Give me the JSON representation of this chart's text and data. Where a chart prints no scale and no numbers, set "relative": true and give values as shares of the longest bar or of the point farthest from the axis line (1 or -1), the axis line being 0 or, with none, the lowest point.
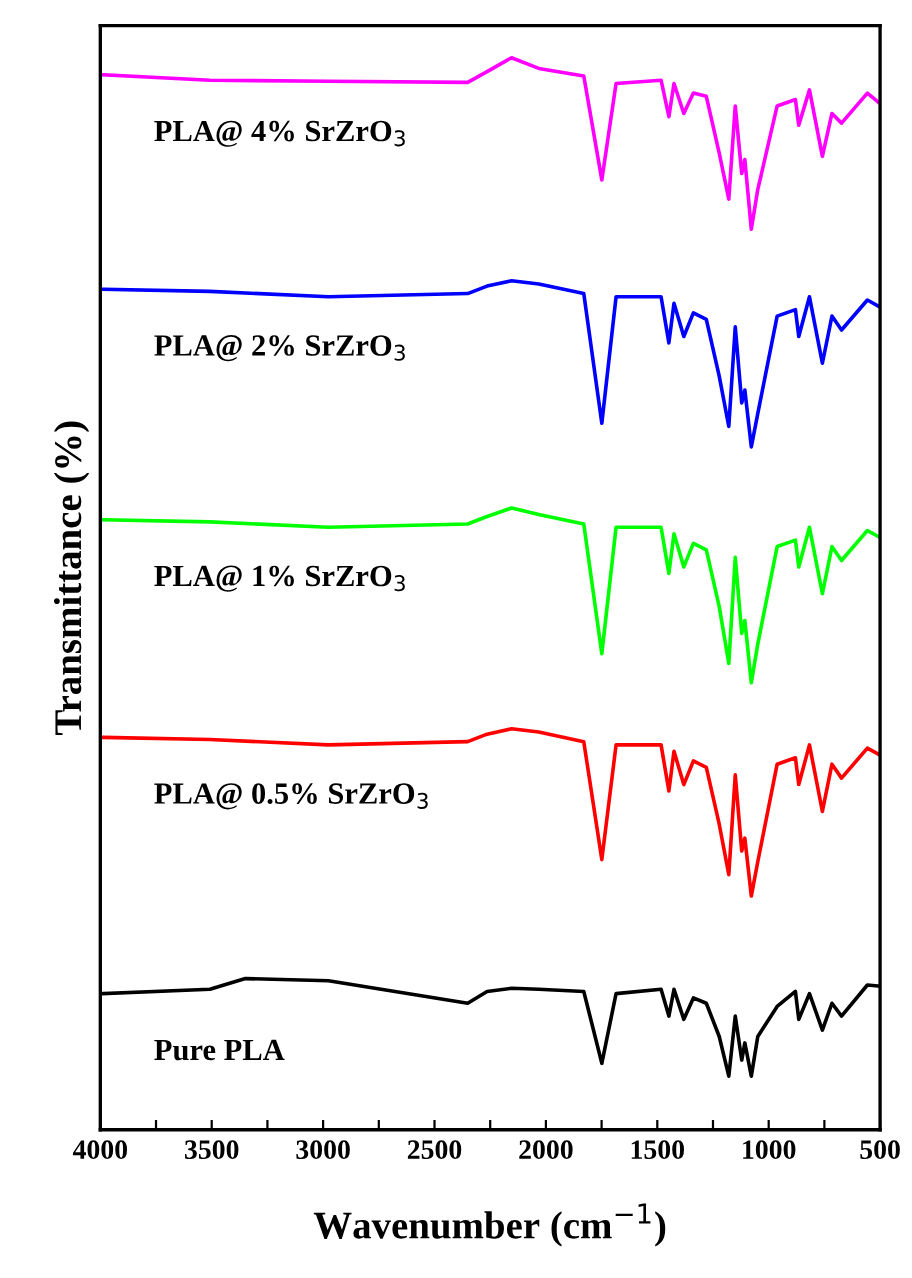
{
  "chart_data": {
    "type": "line",
    "xlabel": "Wavenumber (cm$^{−1}$)",
    "ylabel": "Transmittance (%)",
    "relative": true,
    "tick_labels": "x",
    "grid": false,
    "marker": "none",
    "line_style": "solid",
    "xlim": [
      4000,
      500
    ],
    "xticks": [
      4000,
      {
        "value": 3750,
        "label": null
      },
      3500,
      {
        "value": 3250,
        "label": null
      },
      3000,
      {
        "value": 2750,
        "label": null
      },
      2500,
      {
        "value": 2250,
        "label": null
      },
      2000,
      {
        "value": 1750,
        "label": null
      },
      1500,
      {
        "value": 1250,
        "label": null
      },
      1000,
      {
        "value": 750,
        "label": null
      },
      500
    ],
    "x": [
      3985,
      3508,
      2976,
      2351,
      2264,
      2154,
      2032,
      1830,
      1749,
      1685,
      1483,
      1448,
      1425,
      1381,
      1338,
      1280,
      1222,
      1179,
      1150,
      1121,
      1107,
      1078,
      1049,
      962,
      880,
      865,
      817,
      759,
      716,
      673,
      557,
      505
    ],
    "series": [
      {
        "name": "PLA@ 4% SrZrO$_{3}$",
        "color": "#ff00ff",
        "values": [
          0.984,
          0.979,
          0.978,
          0.977,
          0.987,
          1.0,
          0.99,
          0.983,
          0.886,
          0.976,
          0.979,
          0.945,
          0.976,
          0.948,
          0.967,
          0.964,
          0.911,
          0.868,
          0.955,
          0.892,
          0.905,
          0.84,
          0.877,
          0.955,
          0.961,
          0.937,
          0.97,
          0.908,
          0.948,
          0.939,
          0.967,
          0.958
        ]
      },
      {
        "name": "PLA@ 2% SrZrO$_{3}$",
        "color": "#0000ff",
        "values": [
          0.784,
          0.782,
          0.777,
          0.78,
          0.787,
          0.792,
          0.789,
          0.78,
          0.659,
          0.777,
          0.777,
          0.734,
          0.771,
          0.74,
          0.762,
          0.756,
          0.703,
          0.656,
          0.749,
          0.678,
          0.69,
          0.637,
          0.668,
          0.759,
          0.765,
          0.74,
          0.777,
          0.715,
          0.759,
          0.746,
          0.774,
          0.768
        ]
      },
      {
        "name": "PLA@ 1% SrZrO$_{3}$",
        "color": "#00ff00",
        "values": [
          0.569,
          0.567,
          0.562,
          0.565,
          0.572,
          0.58,
          0.574,
          0.565,
          0.444,
          0.562,
          0.562,
          0.519,
          0.556,
          0.525,
          0.547,
          0.541,
          0.488,
          0.435,
          0.534,
          0.463,
          0.475,
          0.417,
          0.453,
          0.544,
          0.55,
          0.525,
          0.562,
          0.5,
          0.544,
          0.531,
          0.559,
          0.553
        ]
      },
      {
        "name": "PLA@ 0.5% SrZrO$_{3}$",
        "color": "#ff0000",
        "values": [
          0.366,
          0.364,
          0.359,
          0.362,
          0.369,
          0.374,
          0.371,
          0.362,
          0.252,
          0.359,
          0.359,
          0.316,
          0.353,
          0.322,
          0.344,
          0.338,
          0.285,
          0.238,
          0.331,
          0.26,
          0.272,
          0.218,
          0.25,
          0.341,
          0.347,
          0.322,
          0.359,
          0.297,
          0.341,
          0.328,
          0.356,
          0.35
        ]
      },
      {
        "name": "Pure PLA",
        "color": "#000000",
        "x": [
          3985,
          3508,
          3349,
          2976,
          2351,
          2264,
          2154,
          2032,
          1830,
          1749,
          1685,
          1483,
          1448,
          1425,
          1381,
          1338,
          1280,
          1222,
          1179,
          1150,
          1121,
          1107,
          1078,
          1049,
          962,
          880,
          865,
          817,
          759,
          716,
          673,
          557,
          505
        ],
        "values": [
          0.127,
          0.131,
          0.141,
          0.139,
          0.118,
          0.129,
          0.132,
          0.131,
          0.129,
          0.062,
          0.127,
          0.131,
          0.106,
          0.131,
          0.103,
          0.123,
          0.118,
          0.087,
          0.05,
          0.106,
          0.065,
          0.081,
          0.05,
          0.087,
          0.115,
          0.129,
          0.103,
          0.127,
          0.093,
          0.118,
          0.106,
          0.135,
          0.134
        ]
      }
    ]
  }
}
